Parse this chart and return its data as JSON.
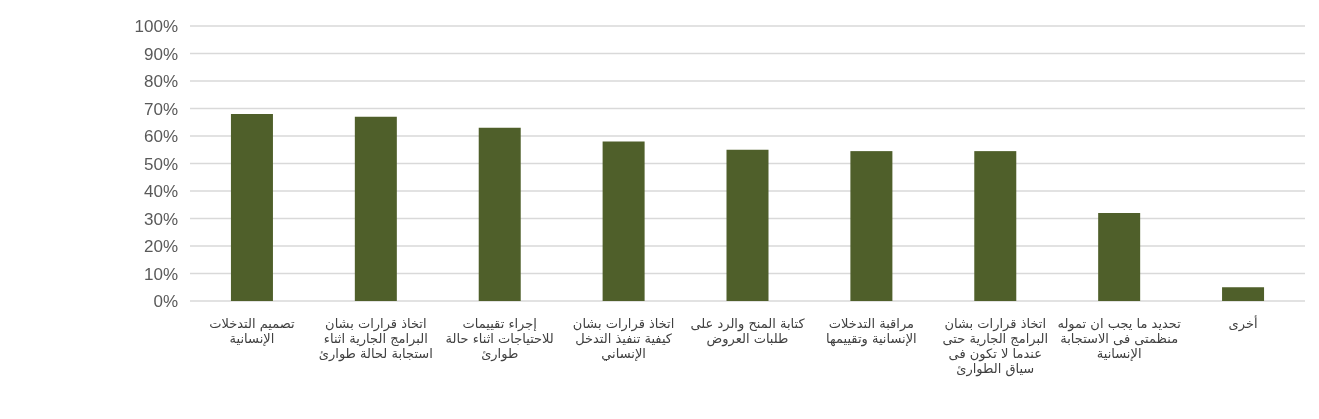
{
  "chart_data": {
    "type": "bar",
    "categories": [
      "تصميم التدخلات الإنسانية",
      "اتخاذ قرارات بشان البرامج الجارية اثناء استجابة لحالة طوارئ",
      "إجراء تقييمات للاحتياجات اثناء حالة طوارئ",
      "اتخاذ قرارات بشان كيفية تنفيذ التدخل الإنساني",
      "كتابة المنح والرد على طلبات العروض",
      "مراقبة التدخلات الإنسانية وتقييمها",
      "اتخاذ قرارات بشان البرامج الجارية حتى عندما لا تكون فى سياق الطوارئ",
      "تحديد ما يجب ان تموله منظمتى فى الاستجابة الإنسانية",
      "أخرى"
    ],
    "values": [
      68,
      67,
      63,
      58,
      55,
      54.5,
      54.5,
      32,
      5
    ],
    "color": "#4f5f2a",
    "ylim": [
      0,
      100
    ],
    "yticks": [
      {
        "value": 0,
        "label": "0%"
      },
      {
        "value": 10,
        "label": "10%"
      },
      {
        "value": 20,
        "label": "20%"
      },
      {
        "value": 30,
        "label": "30%"
      },
      {
        "value": 40,
        "label": "40%"
      },
      {
        "value": 50,
        "label": "50%"
      },
      {
        "value": 60,
        "label": "60%"
      },
      {
        "value": 70,
        "label": "70%"
      },
      {
        "value": 80,
        "label": "80%"
      },
      {
        "value": 90,
        "label": "90%"
      },
      {
        "value": 100,
        "label": "100%"
      }
    ],
    "grid": "y"
  }
}
